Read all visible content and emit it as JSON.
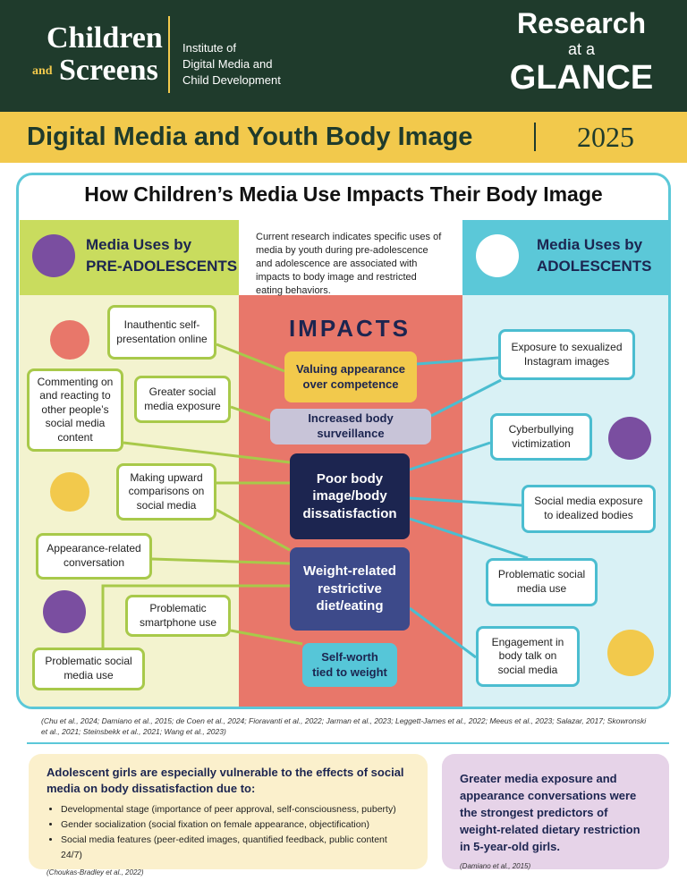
{
  "header": {
    "brand_line1": "Children",
    "brand_and": "and",
    "brand_line2": "Screens",
    "institute": [
      "Institute of",
      "Digital Media and",
      "Child Development"
    ],
    "glance": [
      "Research",
      "at a",
      "GLANCE"
    ]
  },
  "title_bar": {
    "title": "Digital Media and Youth Body Image",
    "year": "2025"
  },
  "main": {
    "heading": "How Children’s Media Use Impacts Their Body Image",
    "left_header": [
      "Media Uses by",
      "PRE-ADOLESCENTS"
    ],
    "intro": "Current research indicates specific uses of media by youth during pre-adolescence and adolescence are associated with impacts to body image and restricted eating behaviors.",
    "right_header": [
      "Media Uses by",
      "ADOLESCENTS"
    ],
    "impacts_title": "IMPACTS",
    "impacts": [
      "Valuing appearance over competence",
      "Increased body surveillance",
      "Poor body image/body dissatisfaction",
      "Weight-related restrictive diet/eating",
      "Self-worth tied to weight"
    ],
    "left_uses": [
      "Inauthentic self-presentation online",
      "Commenting on and reacting to other people’s social media content",
      "Greater social media exposure",
      "Making upward comparisons on social media",
      "Appearance-related conversation",
      "Problematic smartphone use",
      "Problematic social media use"
    ],
    "right_uses": [
      "Exposure to sexualized Instagram images",
      "Cyberbullying victimization",
      "Social media exposure to idealized bodies",
      "Problematic social media use",
      "Engagement in body talk on social media"
    ],
    "citations": "(Chu et al., 2024; Damiano et al., 2015; de Coen et al., 2024; Fioravanti et al., 2022; Jarman et al., 2023; Leggett-James et al., 2022; Meeus et al., 2023; Salazar, 2017; Skowronski et al., 2021; Steinsbekk et al., 2021; Wang et al., 2023)"
  },
  "bottom_left": {
    "heading": "Adolescent girls are especially vulnerable to the effects of social media on body dissatisfaction due to:",
    "bullets": [
      "Developmental stage (importance of peer approval, self-consciousness, puberty)",
      "Gender socialization (social fixation on female appearance, objectification)",
      "Social media features (peer-edited images, quantified feedback, public content 24/7)"
    ],
    "citation": "(Choukas-Bradley et al., 2022)"
  },
  "bottom_right": {
    "text": "Greater media exposure and appearance conversations were the strongest predictors of weight-related dietary restriction in 5-year-old girls.",
    "citation": "(Damiano et al., 2015)"
  }
}
